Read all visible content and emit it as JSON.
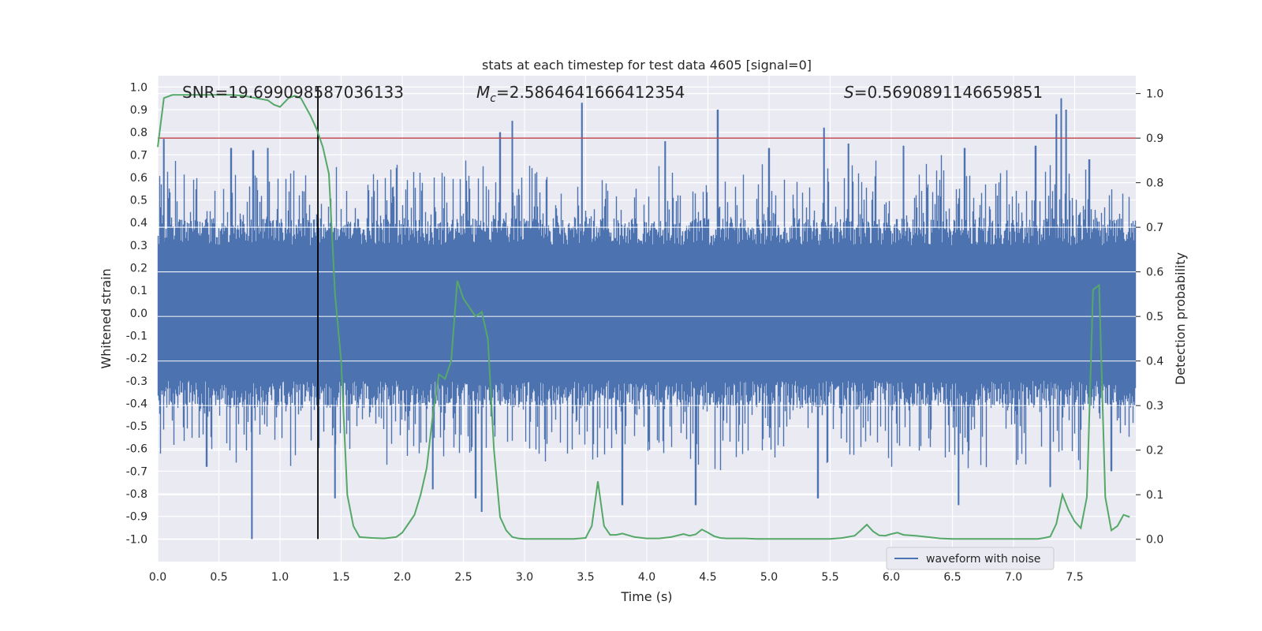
{
  "chart_data": {
    "type": "line",
    "title": "stats at each timestep for test data 4605 [signal=0]",
    "xlabel": "Time (s)",
    "ylabel_left": "Whitened strain",
    "ylabel_right": "Detection probability",
    "xlim": [
      0,
      8
    ],
    "ylim_left": [
      -1.1,
      1.05
    ],
    "ylim_right": [
      -0.05,
      1.04
    ],
    "grid": true,
    "x_ticks": [
      "0.0",
      "0.5",
      "1.0",
      "1.5",
      "2.0",
      "2.5",
      "3.0",
      "3.5",
      "4.0",
      "4.5",
      "5.0",
      "5.5",
      "6.0",
      "6.5",
      "7.0",
      "7.5"
    ],
    "x_tick_values": [
      0,
      0.5,
      1,
      1.5,
      2,
      2.5,
      3,
      3.5,
      4,
      4.5,
      5,
      5.5,
      6,
      6.5,
      7,
      7.5
    ],
    "y_left_ticks": [
      "1.0",
      "0.9",
      "0.8",
      "0.7",
      "0.6",
      "0.5",
      "0.4",
      "0.3",
      "0.2",
      "0.1",
      "0.0",
      "-0.1",
      "-0.2",
      "-0.3",
      "-0.4",
      "-0.5",
      "-0.6",
      "-0.7",
      "-0.8",
      "-0.9",
      "-1.0"
    ],
    "y_left_tick_values": [
      1.0,
      0.9,
      0.8,
      0.7,
      0.6,
      0.5,
      0.4,
      0.3,
      0.2,
      0.1,
      0.0,
      -0.1,
      -0.2,
      -0.3,
      -0.4,
      -0.5,
      -0.6,
      -0.7,
      -0.8,
      -0.9,
      -1.0
    ],
    "y_right_ticks": [
      "1.0",
      "0.9",
      "0.8",
      "0.7",
      "0.6",
      "0.5",
      "0.4",
      "0.3",
      "0.2",
      "0.1",
      "0.0"
    ],
    "y_right_tick_values": [
      1.0,
      0.9,
      0.8,
      0.7,
      0.6,
      0.5,
      0.4,
      0.3,
      0.2,
      0.1,
      0.0
    ],
    "annotations": {
      "snr": "SNR=19.699098587036133",
      "mc_symbol": "M",
      "mc_sub": "c",
      "mc_value": "=2.5864641666412354",
      "s_symbol": "S",
      "s_value": "=0.5690891146659851"
    },
    "legend": {
      "label": "waveform with noise",
      "placement": "lower-right"
    },
    "threshold": {
      "value": 0.9,
      "axis": "right",
      "color": "#c44e52"
    },
    "vertical_marker": {
      "x": 1.31,
      "y_range": [
        -1.0,
        1.0
      ],
      "color": "#000000"
    },
    "waveform": {
      "name": "waveform with noise",
      "color": "#4c72b0",
      "duration": 8.0,
      "peaks_positive": [
        [
          0.05,
          0.77
        ],
        [
          0.6,
          0.73
        ],
        [
          0.78,
          0.72
        ],
        [
          0.9,
          0.73
        ],
        [
          2.8,
          0.8
        ],
        [
          2.9,
          0.85
        ],
        [
          3.47,
          0.93
        ],
        [
          4.15,
          0.76
        ],
        [
          4.58,
          0.9
        ],
        [
          5.0,
          0.73
        ],
        [
          5.45,
          0.82
        ],
        [
          5.65,
          0.75
        ],
        [
          6.1,
          0.74
        ],
        [
          6.6,
          0.73
        ],
        [
          7.18,
          0.74
        ],
        [
          7.35,
          0.88
        ],
        [
          7.39,
          0.95
        ],
        [
          7.43,
          0.9
        ],
        [
          7.62,
          0.68
        ]
      ],
      "peaks_negative": [
        [
          0.4,
          -0.68
        ],
        [
          0.77,
          -1.0
        ],
        [
          1.45,
          -0.82
        ],
        [
          2.25,
          -0.78
        ],
        [
          2.6,
          -0.82
        ],
        [
          2.65,
          -0.88
        ],
        [
          3.8,
          -0.85
        ],
        [
          4.4,
          -0.85
        ],
        [
          5.4,
          -0.82
        ],
        [
          6.55,
          -0.85
        ],
        [
          7.3,
          -0.77
        ],
        [
          7.8,
          -0.7
        ]
      ]
    },
    "series": [
      {
        "name": "detection probability",
        "axis": "right",
        "color": "#55a868",
        "x": [
          0.0,
          0.05,
          0.12,
          0.2,
          0.3,
          0.4,
          0.5,
          0.6,
          0.7,
          0.8,
          0.9,
          0.95,
          1.0,
          1.07,
          1.12,
          1.17,
          1.25,
          1.3,
          1.35,
          1.4,
          1.45,
          1.5,
          1.55,
          1.6,
          1.65,
          1.75,
          1.85,
          1.95,
          2.0,
          2.05,
          2.1,
          2.15,
          2.2,
          2.25,
          2.3,
          2.35,
          2.4,
          2.45,
          2.5,
          2.55,
          2.6,
          2.65,
          2.7,
          2.75,
          2.8,
          2.85,
          2.9,
          2.95,
          3.0,
          3.05,
          3.1,
          3.2,
          3.3,
          3.4,
          3.5,
          3.55,
          3.6,
          3.65,
          3.7,
          3.75,
          3.8,
          3.9,
          4.0,
          4.1,
          4.2,
          4.3,
          4.35,
          4.4,
          4.45,
          4.5,
          4.55,
          4.6,
          4.65,
          4.7,
          4.75,
          4.8,
          4.9,
          5.0,
          5.1,
          5.2,
          5.3,
          5.4,
          5.5,
          5.6,
          5.7,
          5.75,
          5.8,
          5.85,
          5.9,
          5.95,
          6.0,
          6.05,
          6.1,
          6.2,
          6.3,
          6.4,
          6.5,
          6.6,
          6.7,
          6.8,
          6.9,
          7.0,
          7.1,
          7.2,
          7.25,
          7.3,
          7.35,
          7.4,
          7.45,
          7.5,
          7.55,
          7.6,
          7.65,
          7.7,
          7.75,
          7.8,
          7.85,
          7.9,
          7.95
        ],
        "y": [
          0.88,
          0.99,
          0.997,
          0.997,
          0.997,
          0.997,
          0.997,
          0.997,
          0.995,
          0.99,
          0.985,
          0.975,
          0.97,
          0.99,
          0.995,
          0.99,
          0.95,
          0.92,
          0.88,
          0.82,
          0.55,
          0.4,
          0.1,
          0.03,
          0.005,
          0.003,
          0.002,
          0.005,
          0.015,
          0.035,
          0.055,
          0.1,
          0.16,
          0.28,
          0.37,
          0.36,
          0.4,
          0.58,
          0.54,
          0.52,
          0.5,
          0.51,
          0.45,
          0.2,
          0.05,
          0.02,
          0.005,
          0.002,
          0.001,
          0.001,
          0.001,
          0.001,
          0.001,
          0.001,
          0.003,
          0.03,
          0.13,
          0.03,
          0.01,
          0.01,
          0.013,
          0.005,
          0.002,
          0.002,
          0.005,
          0.012,
          0.008,
          0.011,
          0.022,
          0.015,
          0.007,
          0.003,
          0.002,
          0.002,
          0.002,
          0.002,
          0.001,
          0.001,
          0.001,
          0.001,
          0.001,
          0.001,
          0.001,
          0.003,
          0.008,
          0.02,
          0.033,
          0.018,
          0.009,
          0.008,
          0.012,
          0.015,
          0.01,
          0.008,
          0.005,
          0.002,
          0.001,
          0.001,
          0.001,
          0.001,
          0.001,
          0.001,
          0.001,
          0.001,
          0.003,
          0.006,
          0.035,
          0.1,
          0.065,
          0.04,
          0.025,
          0.095,
          0.56,
          0.57,
          0.095,
          0.02,
          0.03,
          0.055,
          0.05
        ]
      }
    ]
  }
}
